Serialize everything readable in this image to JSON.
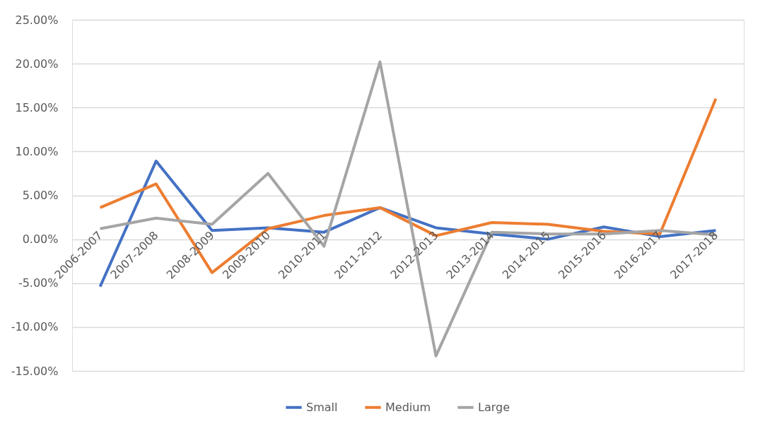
{
  "chart_data": {
    "type": "line",
    "categories": [
      "2006-2007",
      "2007-2008",
      "2008-2009",
      "2009-2010",
      "2010-2011",
      "2011-2012",
      "2012-2013",
      "2013-2014",
      "2014-2015",
      "2015-2016",
      "2016-2017",
      "2017-2018"
    ],
    "series": [
      {
        "name": "Small",
        "color": "#4472c4",
        "values": [
          -5.4,
          8.9,
          1.0,
          1.3,
          0.8,
          3.6,
          1.3,
          0.6,
          0.0,
          1.4,
          0.3,
          1.0
        ]
      },
      {
        "name": "Medium",
        "color": "#ed7d31",
        "values": [
          3.6,
          6.3,
          -3.8,
          1.2,
          2.7,
          3.6,
          0.4,
          1.9,
          1.7,
          0.9,
          0.6,
          16.0
        ]
      },
      {
        "name": "Large",
        "color": "#a5a5a5",
        "values": [
          1.2,
          2.4,
          1.7,
          7.5,
          -0.8,
          20.2,
          -13.3,
          0.8,
          0.6,
          0.6,
          1.0,
          0.5
        ]
      }
    ],
    "ylim": [
      -15,
      25
    ],
    "yticks": [
      {
        "value": -15,
        "label": "-15.00%"
      },
      {
        "value": -10,
        "label": "-10.00%"
      },
      {
        "value": -5,
        "label": "-5.00%"
      },
      {
        "value": 0,
        "label": "0.00%"
      },
      {
        "value": 5,
        "label": "5.00%"
      },
      {
        "value": 10,
        "label": "10.00%"
      },
      {
        "value": 15,
        "label": "15.00%"
      },
      {
        "value": 20,
        "label": "20.00%"
      },
      {
        "value": 25,
        "label": "25.00%"
      }
    ],
    "grid": "y",
    "legend": "bottom",
    "marker": "none",
    "line_style": "solid"
  }
}
